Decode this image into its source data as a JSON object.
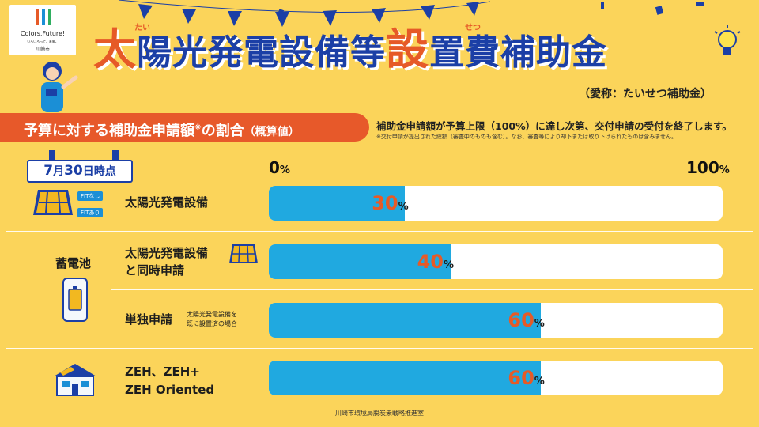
{
  "logo": {
    "tagline": "Colors,Future!",
    "sub": "いろいろって、未来。",
    "city": "川崎市"
  },
  "title": {
    "part1": "太",
    "part2": "陽光発電設備等",
    "part3": "設",
    "part4": "置費補助金",
    "ruby_tai": "たい",
    "ruby_setsu": "せつ",
    "nickname": "（愛称：たいせつ補助金）"
  },
  "section": {
    "title": "予算に対する補助金申請額",
    "title_mark": "※",
    "title_tail": "の割合",
    "title_paren": "（概算値）"
  },
  "notes": {
    "main": "補助金申請額が予算上限（100%）に達し次第、交付申請の受付を終了します。",
    "sub": "※交付申請が提出された総額（審査中のものも含む）。なお、審査等により却下または取り下げられたものは含みません。"
  },
  "date_tag": {
    "month": "7",
    "month_unit": "月",
    "day": "30",
    "day_unit": "日時点"
  },
  "axis": {
    "min": "0",
    "max": "100",
    "unit": "%"
  },
  "icons": {
    "fit_none": "FITなし",
    "fit_yes": "FITあり"
  },
  "rows": [
    {
      "label": "太陽光発電設備",
      "value": 30,
      "value_text": "30",
      "unit": "%"
    },
    {
      "label_line1": "太陽光発電設備",
      "label_line2": "と同時申請",
      "value": 40,
      "value_text": "40",
      "unit": "%"
    },
    {
      "label": "単独申請",
      "note_line1": "太陽光発電設備を",
      "note_line2": "既に設置済の場合",
      "value": 60,
      "value_text": "60",
      "unit": "%"
    },
    {
      "label_line1": "ZEH、ZEH+",
      "label_line2": "ZEH Oriented",
      "value": 60,
      "value_text": "60",
      "unit": "%"
    }
  ],
  "category_battery": "蓄電池",
  "footer": "川崎市環境局脱炭素戦略推進室",
  "colors": {
    "background": "#fbd45a",
    "accent": "#e65a27",
    "navy": "#1b3fa6",
    "bar": "#20a9e0"
  }
}
